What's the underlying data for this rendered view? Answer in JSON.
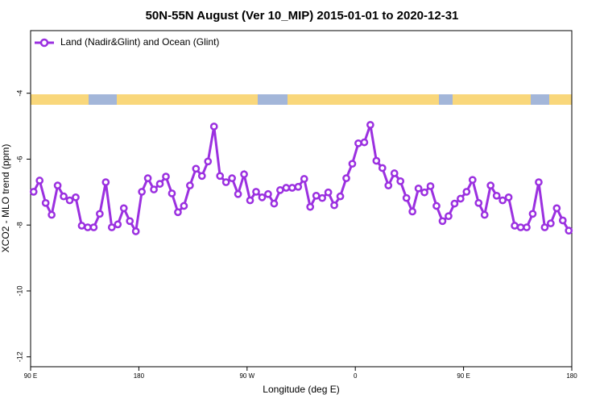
{
  "chart_data": {
    "type": "line",
    "title": "50N-55N August (Ver 10_MIP)   2015-01-01 to 2020-12-31",
    "xlabel": "Longitude (deg E)",
    "ylabel": "XCO2 - MLO trend (ppm)",
    "xlim": [
      90,
      540
    ],
    "xticks": [
      {
        "value": 90,
        "label": "90 E"
      },
      {
        "value": 180,
        "label": "180"
      },
      {
        "value": 270,
        "label": "90 W"
      },
      {
        "value": 360,
        "label": "0"
      },
      {
        "value": 450,
        "label": "90 E"
      },
      {
        "value": 540,
        "label": "180"
      }
    ],
    "ylim": [
      -12.3,
      -2.1
    ],
    "yticks": [
      -4,
      -6,
      -8,
      -10,
      -12
    ],
    "legend": "upper left",
    "x": [
      92.5,
      97.5,
      102.5,
      107.5,
      112.5,
      117.5,
      122.5,
      127.5,
      132.5,
      137.5,
      142.5,
      147.5,
      152.5,
      157.5,
      162.5,
      167.5,
      172.5,
      177.5,
      182.5,
      187.5,
      192.5,
      197.5,
      202.5,
      207.5,
      212.5,
      217.5,
      222.5,
      227.5,
      232.5,
      237.5,
      242.5,
      247.5,
      252.5,
      257.5,
      262.5,
      267.5,
      272.5,
      277.5,
      282.5,
      287.5,
      292.5,
      297.5,
      302.5,
      307.5,
      312.5,
      317.5,
      322.5,
      327.5,
      332.5,
      337.5,
      342.5,
      347.5,
      352.5,
      357.5,
      362.5,
      367.5,
      372.5,
      377.5,
      382.5,
      387.5,
      392.5,
      397.5,
      402.5,
      407.5,
      412.5,
      417.5,
      422.5,
      427.5,
      432.5,
      437.5,
      442.5,
      447.5,
      452.5,
      457.5,
      462.5,
      467.5,
      472.5,
      477.5,
      482.5,
      487.5,
      492.5,
      497.5,
      502.5,
      507.5,
      512.5,
      517.5,
      522.5,
      527.5,
      532.5,
      537.5
    ],
    "series": [
      {
        "name": "Land (Nadir&Glint) and Ocean (Glint)",
        "color": "#9b30e0",
        "values": [
          -6.99,
          -6.65,
          -7.33,
          -7.69,
          -6.8,
          -7.13,
          -7.25,
          -7.16,
          -8.02,
          -8.07,
          -8.07,
          -7.66,
          -6.7,
          -8.07,
          -7.98,
          -7.49,
          -7.88,
          -8.19,
          -6.99,
          -6.58,
          -6.92,
          -6.75,
          -6.53,
          -7.04,
          -7.61,
          -7.42,
          -6.8,
          -6.29,
          -6.51,
          -6.07,
          -5.01,
          -6.51,
          -6.7,
          -6.58,
          -7.06,
          -6.46,
          -7.25,
          -6.99,
          -7.16,
          -7.06,
          -7.35,
          -6.94,
          -6.87,
          -6.87,
          -6.84,
          -6.6,
          -7.45,
          -7.11,
          -7.18,
          -7.01,
          -7.4,
          -7.13,
          -6.58,
          -6.14,
          -5.52,
          -5.49,
          -4.96,
          -6.05,
          -6.27,
          -6.8,
          -6.43,
          -6.67,
          -7.18,
          -7.59,
          -6.89,
          -7.01,
          -6.82,
          -7.42,
          -7.88,
          -7.73,
          -7.35,
          -7.2,
          -6.99,
          -6.63,
          -7.33,
          -7.69,
          -6.8,
          -7.11,
          -7.25,
          -7.16,
          -8.02,
          -8.07,
          -8.07,
          -7.66,
          -6.7,
          -8.07,
          -7.95,
          -7.49,
          -7.86,
          -8.17
        ]
      }
    ]
  }
}
